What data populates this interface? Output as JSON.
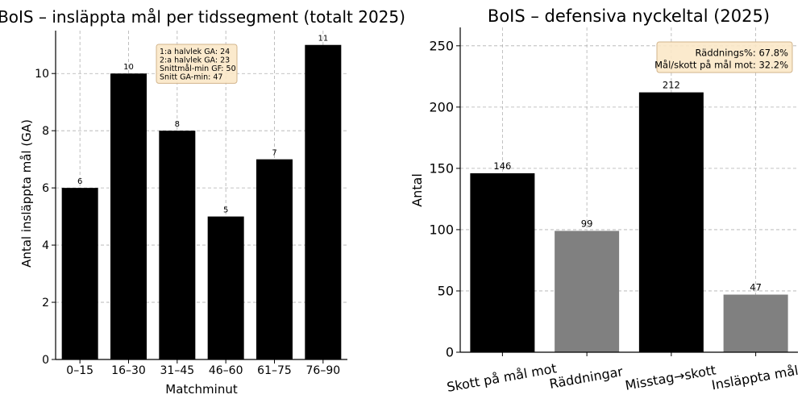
{
  "chart_data": [
    {
      "type": "bar",
      "title": "BoIS – insläppta mål per tidssegment (totalt 2025)",
      "xlabel": "Matchminut",
      "ylabel": "Antal insläppta mål (GA)",
      "categories": [
        "0–15",
        "16–30",
        "31–45",
        "46–60",
        "61–75",
        "76–90"
      ],
      "values": [
        6,
        10,
        8,
        5,
        7,
        11
      ],
      "data_labels": [
        "6",
        "10",
        "8",
        "5",
        "7",
        "11"
      ],
      "bar_colors": [
        "#000000",
        "#000000",
        "#000000",
        "#000000",
        "#000000",
        "#000000"
      ],
      "ylim": [
        0,
        11.5
      ],
      "yticks": [
        0,
        2,
        4,
        6,
        8,
        10
      ],
      "grid": true,
      "annotation": {
        "lines": [
          "1:a halvlek GA: 24",
          "2:a halvlek GA: 23",
          "Snittmål-min GF: 50",
          "Snitt GA-min: 47"
        ],
        "placement": "top-center",
        "background": "#fbe8c8",
        "border": "#d2b48c"
      }
    },
    {
      "type": "bar",
      "title": "BoIS – defensiva nyckeltal (2025)",
      "xlabel": "",
      "ylabel": "Antal",
      "categories": [
        "Skott på mål mot",
        "Räddningar",
        "Misstag→skott",
        "Insläppta mål"
      ],
      "values": [
        146,
        99,
        212,
        47
      ],
      "data_labels": [
        "146",
        "99",
        "212",
        "47"
      ],
      "bar_colors": [
        "#000000",
        "#808080",
        "#000000",
        "#808080"
      ],
      "ylim": [
        0,
        265
      ],
      "yticks": [
        0,
        50,
        100,
        150,
        200,
        250
      ],
      "grid": true,
      "xtick_rotation": -10,
      "annotation": {
        "lines": [
          "Räddnings%: 67.8%",
          "Mål/skott på mål mot: 32.2%"
        ],
        "placement": "top-right",
        "background": "#fbe8c8",
        "border": "#d2b48c"
      }
    }
  ]
}
